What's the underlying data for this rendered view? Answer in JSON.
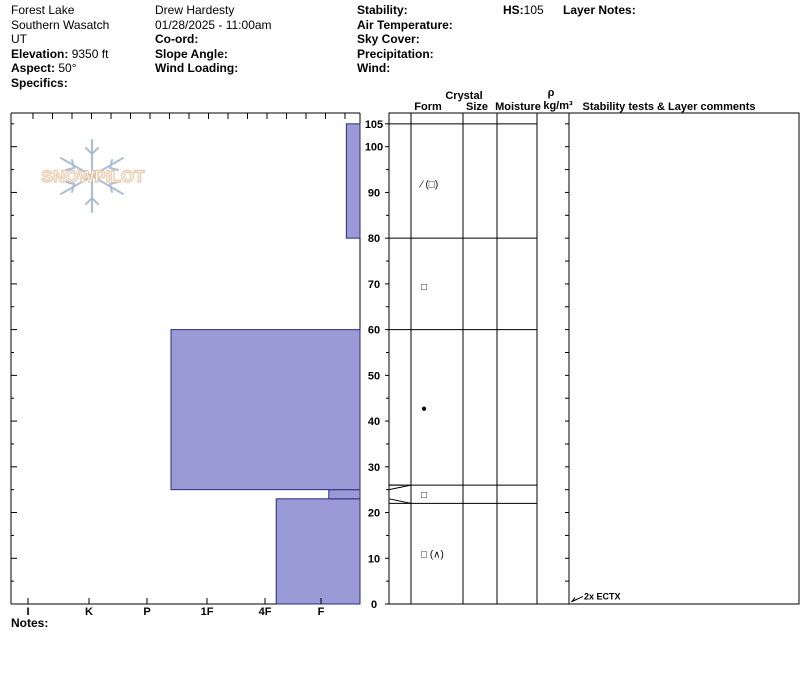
{
  "site": {
    "location": "Forest Lake",
    "region": "Southern Wasatch",
    "state": "UT",
    "elevation_label": "Elevation:",
    "elevation_value": "9350 ft",
    "aspect_label": "Aspect:",
    "aspect_value": "50°",
    "specifics_label": "Specifics:"
  },
  "observer": {
    "name": "Drew Hardesty",
    "datetime": "01/28/2025 - 11:00am",
    "coord_label": "Co-ord:",
    "slope_label": "Slope Angle:",
    "wind_loading_label": "Wind Loading:"
  },
  "conditions": {
    "stability_label": "Stability:",
    "air_temp_label": "Air Temperature:",
    "sky_label": "Sky Cover:",
    "precip_label": "Precipitation:",
    "wind_label": "Wind:"
  },
  "hs": {
    "label": "HS:",
    "value": "105"
  },
  "layer_notes_label": "Layer Notes:",
  "watermark": "SNOWPILOT",
  "notes_label": "Notes:",
  "columns": {
    "crystal": "Crystal",
    "form": "Form",
    "size": "Size",
    "moisture": "Moisture",
    "rho": "ρ",
    "density": "kg/m³",
    "stability": "Stability tests & Layer comments"
  },
  "chart_data": {
    "type": "snow-profile",
    "hardness_labels": [
      "I",
      "K",
      "P",
      "1F",
      "4F",
      "F"
    ],
    "height_ticks": [
      0,
      10,
      20,
      30,
      40,
      50,
      60,
      70,
      80,
      90,
      100,
      105
    ],
    "height_range_cm": [
      0,
      105
    ],
    "hardness_layers": [
      {
        "bottom": 0,
        "top": 23,
        "hardness": 4.2
      },
      {
        "bottom": 23,
        "top": 25,
        "hardness": 5.2
      },
      {
        "bottom": 25,
        "top": 60,
        "hardness": 2.4
      },
      {
        "bottom": 60,
        "top": 80,
        "hardness": 6.0
      },
      {
        "bottom": 80,
        "top": 105,
        "hardness": 5.65
      }
    ],
    "layer_boundaries": [
      105,
      80,
      60,
      26,
      22
    ],
    "crystal_forms": [
      {
        "height": 92,
        "symbol": "⁄ (□)"
      },
      {
        "height": 69.5,
        "symbol": "□"
      },
      {
        "height": 43,
        "symbol": "●"
      },
      {
        "height": 24,
        "symbol": "□"
      },
      {
        "height": 11,
        "symbol": "□ (∧)"
      }
    ],
    "stability_tests": [
      {
        "height": 1,
        "result": "2x ECTX"
      }
    ]
  }
}
